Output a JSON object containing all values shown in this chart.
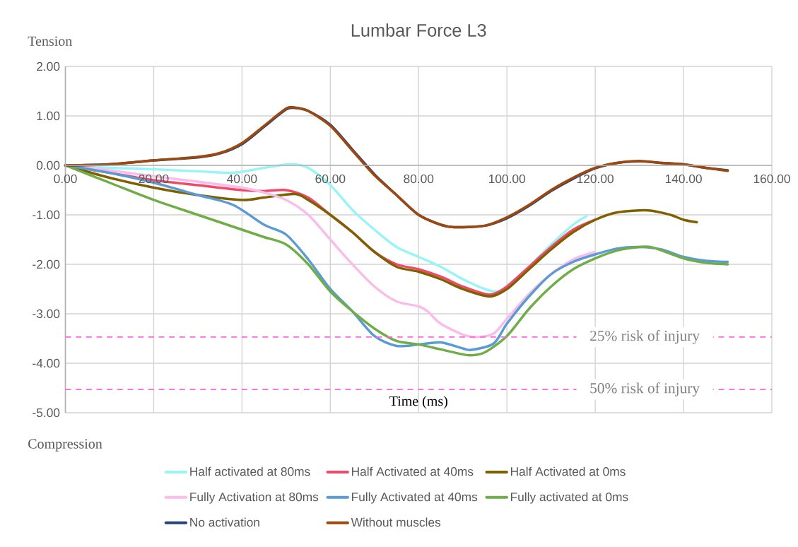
{
  "chart_data": {
    "type": "line",
    "title": "Lumbar Force L3",
    "xlabel": "Time (ms)",
    "annotations": [
      "Tension",
      "Compression"
    ],
    "xlim": [
      0,
      160
    ],
    "ylim": [
      -5,
      2
    ],
    "xticks": [
      {
        "value": 0,
        "label": "0.00"
      },
      {
        "value": 20,
        "label": "20.00"
      },
      {
        "value": 40,
        "label": "40.00"
      },
      {
        "value": 60,
        "label": "60.00"
      },
      {
        "value": 80,
        "label": "80.00"
      },
      {
        "value": 100,
        "label": "100.00"
      },
      {
        "value": 120,
        "label": "120.00"
      },
      {
        "value": 140,
        "label": "140.00"
      },
      {
        "value": 160,
        "label": "160.00"
      }
    ],
    "yticks": [
      {
        "value": 2,
        "label": "2.00"
      },
      {
        "value": 1,
        "label": "1.00"
      },
      {
        "value": 0,
        "label": "0.00"
      },
      {
        "value": -1,
        "label": "-1.00"
      },
      {
        "value": -2,
        "label": "-2.00"
      },
      {
        "value": -3,
        "label": "-3.00"
      },
      {
        "value": -4,
        "label": "-4.00"
      },
      {
        "value": -5,
        "label": "-5.00"
      }
    ],
    "grid": true,
    "legend": "bottom",
    "line_style": "solid",
    "ref_lines": [
      {
        "axis": "y",
        "value": -3.47,
        "label": "25% risk of injury",
        "color": "#ff66dd",
        "line_style": "dashed"
      },
      {
        "axis": "y",
        "value": -4.53,
        "label": "50% risk of injury",
        "color": "#ff66dd",
        "line_style": "dashed"
      }
    ],
    "series": [
      {
        "name": "Half activated at 80ms",
        "color": "#99f5f5",
        "x": [
          0,
          10,
          20,
          30,
          38,
          45,
          51,
          55,
          60,
          65,
          70,
          75,
          80,
          85,
          90,
          95,
          98,
          100,
          105,
          110,
          115,
          118
        ],
        "values": [
          0,
          -0.05,
          -0.08,
          -0.12,
          -0.15,
          -0.05,
          0.02,
          -0.05,
          -0.4,
          -0.9,
          -1.3,
          -1.65,
          -1.85,
          -2.05,
          -2.3,
          -2.5,
          -2.55,
          -2.45,
          -2.05,
          -1.6,
          -1.2,
          -1.03
        ]
      },
      {
        "name": "Half Activated at 40ms",
        "color": "#ef4a68",
        "x": [
          0,
          10,
          20,
          30,
          40,
          45,
          50,
          55,
          60,
          65,
          70,
          75,
          80,
          85,
          90,
          95,
          97,
          100,
          105,
          110,
          115,
          120
        ],
        "values": [
          0,
          -0.15,
          -0.3,
          -0.4,
          -0.5,
          -0.52,
          -0.5,
          -0.65,
          -1.0,
          -1.35,
          -1.75,
          -2.0,
          -2.1,
          -2.25,
          -2.45,
          -2.6,
          -2.6,
          -2.45,
          -2.05,
          -1.65,
          -1.3,
          -1.1
        ]
      },
      {
        "name": "Half Activated at 0ms",
        "color": "#7f6000",
        "x": [
          0,
          10,
          20,
          30,
          40,
          45,
          52,
          55,
          60,
          65,
          70,
          75,
          80,
          85,
          90,
          96,
          100,
          105,
          110,
          115,
          120,
          125,
          132,
          137,
          140,
          143
        ],
        "values": [
          0,
          -0.25,
          -0.45,
          -0.6,
          -0.7,
          -0.65,
          -0.58,
          -0.7,
          -1.0,
          -1.35,
          -1.75,
          -2.05,
          -2.15,
          -2.3,
          -2.5,
          -2.65,
          -2.5,
          -2.1,
          -1.7,
          -1.35,
          -1.1,
          -0.95,
          -0.91,
          -1.0,
          -1.1,
          -1.15
        ]
      },
      {
        "name": "Fully Activation at 80ms",
        "color": "#f8bde8",
        "x": [
          0,
          10,
          20,
          30,
          40,
          45,
          50,
          55,
          60,
          65,
          70,
          75,
          80,
          82,
          85,
          90,
          93,
          97,
          100,
          105,
          110,
          115,
          120
        ],
        "values": [
          0,
          -0.1,
          -0.22,
          -0.33,
          -0.45,
          -0.55,
          -0.7,
          -1.0,
          -1.5,
          -2.0,
          -2.45,
          -2.75,
          -2.85,
          -2.95,
          -3.2,
          -3.42,
          -3.47,
          -3.4,
          -3.1,
          -2.6,
          -2.2,
          -1.9,
          -1.75
        ]
      },
      {
        "name": "Fully Activated at 40ms",
        "color": "#5b9bd5",
        "x": [
          0,
          10,
          20,
          30,
          38,
          45,
          50,
          55,
          60,
          65,
          70,
          75,
          80,
          85,
          90,
          92,
          97,
          100,
          105,
          110,
          115,
          120,
          125,
          130,
          135,
          140,
          145,
          150
        ],
        "values": [
          0,
          -0.15,
          -0.35,
          -0.6,
          -0.8,
          -1.2,
          -1.4,
          -1.9,
          -2.5,
          -2.95,
          -3.45,
          -3.65,
          -3.62,
          -3.58,
          -3.7,
          -3.73,
          -3.6,
          -3.2,
          -2.65,
          -2.2,
          -1.95,
          -1.8,
          -1.68,
          -1.65,
          -1.7,
          -1.85,
          -1.93,
          -1.95
        ]
      },
      {
        "name": "Fully activated at 0ms",
        "color": "#70ad47",
        "x": [
          0,
          10,
          20,
          30,
          40,
          45,
          50,
          55,
          60,
          65,
          70,
          75,
          80,
          85,
          90,
          92,
          95,
          100,
          105,
          110,
          115,
          120,
          125,
          130,
          133,
          140,
          145,
          150
        ],
        "values": [
          0,
          -0.35,
          -0.7,
          -1.0,
          -1.3,
          -1.45,
          -1.6,
          -2.0,
          -2.55,
          -2.95,
          -3.3,
          -3.55,
          -3.62,
          -3.72,
          -3.82,
          -3.84,
          -3.78,
          -3.45,
          -2.9,
          -2.45,
          -2.1,
          -1.88,
          -1.72,
          -1.65,
          -1.66,
          -1.88,
          -1.97,
          -2.0
        ]
      },
      {
        "name": "No activation",
        "color": "#264478",
        "x": [
          0,
          10,
          20,
          30,
          35,
          40,
          45,
          50,
          52,
          55,
          60,
          65,
          70,
          75,
          80,
          85,
          88,
          95,
          100,
          105,
          110,
          115,
          120,
          125,
          130,
          135,
          140,
          145,
          150
        ],
        "values": [
          0,
          0.02,
          0.1,
          0.16,
          0.24,
          0.43,
          0.78,
          1.13,
          1.16,
          1.1,
          0.82,
          0.32,
          -0.18,
          -0.6,
          -1.0,
          -1.2,
          -1.25,
          -1.22,
          -1.07,
          -0.82,
          -0.52,
          -0.27,
          -0.06,
          0.05,
          0.08,
          0.05,
          0.02,
          -0.05,
          -0.1
        ]
      },
      {
        "name": "Without muscles",
        "color": "#9e480e",
        "x": [
          0,
          10,
          20,
          30,
          35,
          40,
          45,
          50,
          52,
          55,
          60,
          65,
          70,
          75,
          80,
          85,
          88,
          95,
          100,
          105,
          110,
          115,
          120,
          125,
          130,
          135,
          140,
          145,
          150
        ],
        "values": [
          0,
          0.02,
          0.1,
          0.17,
          0.25,
          0.45,
          0.8,
          1.15,
          1.17,
          1.1,
          0.8,
          0.3,
          -0.2,
          -0.6,
          -1.0,
          -1.2,
          -1.25,
          -1.22,
          -1.05,
          -0.8,
          -0.5,
          -0.25,
          -0.05,
          0.05,
          0.09,
          0.05,
          0.02,
          -0.05,
          -0.11
        ]
      }
    ]
  }
}
